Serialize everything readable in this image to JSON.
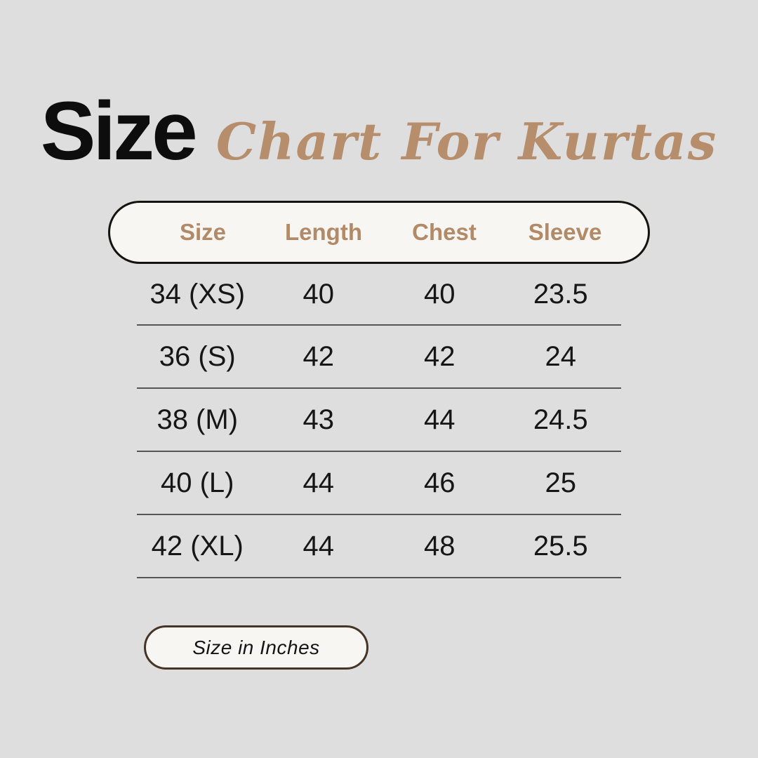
{
  "title": {
    "main": "Size",
    "script": "Chart For Kurtas"
  },
  "colors": {
    "background": "#dedede",
    "accent_tan": "#b28a68",
    "script_tan": "#b68e6c",
    "pill_background": "#f7f6f3",
    "pill_border_dark": "#151310",
    "badge_border_brown": "#463527",
    "row_text": "#161616",
    "divider": "#555555"
  },
  "chart_data": {
    "type": "table",
    "title": "Size Chart For Kurtas",
    "columns": [
      "Size",
      "Length",
      "Chest",
      "Sleeve"
    ],
    "rows": [
      [
        "34 (XS)",
        "40",
        "40",
        "23.5"
      ],
      [
        "36 (S)",
        "42",
        "42",
        "24"
      ],
      [
        "38 (M)",
        "43",
        "44",
        "24.5"
      ],
      [
        "40 (L)",
        "44",
        "46",
        "25"
      ],
      [
        "42 (XL)",
        "44",
        "48",
        "25.5"
      ]
    ],
    "unit_note": "Size in Inches",
    "layout": "header pill above 5 divided rows, unit badge bottom-left"
  },
  "footer": {
    "badge_label": "Size in Inches"
  }
}
